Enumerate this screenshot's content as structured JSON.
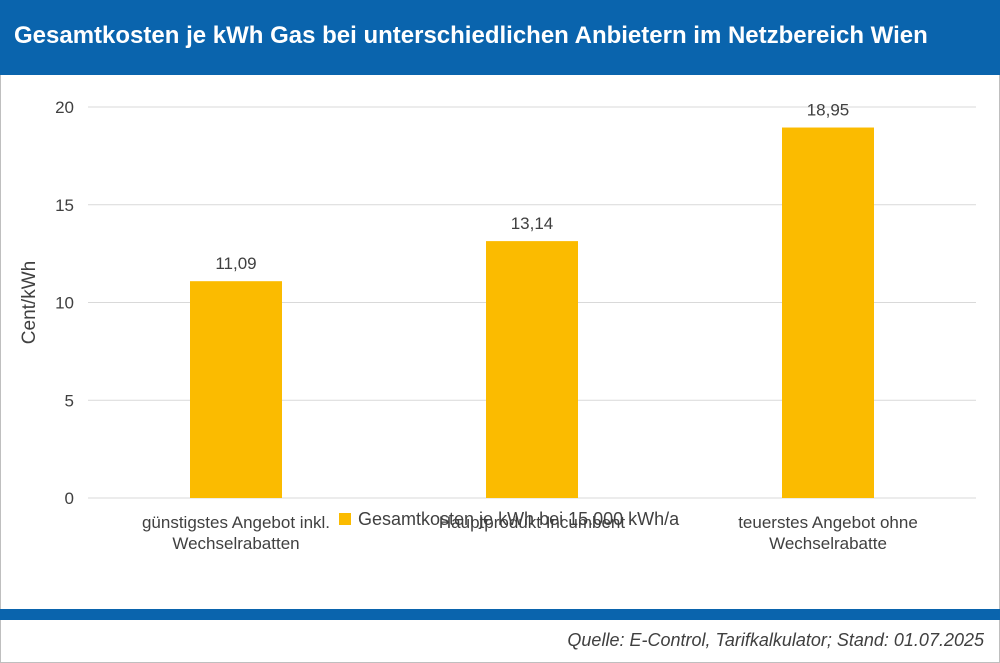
{
  "header": {
    "title": "Gesamtkosten je kWh Gas bei unterschiedlichen Anbietern im Netzbereich Wien"
  },
  "source": "Quelle: E-Control, Tarifkalkulator; Stand: 01.07.2025",
  "colors": {
    "header": "#0a64ad",
    "bar": "#fbbb00",
    "grid": "#d9d9d9",
    "text": "#404040"
  },
  "chart_data": {
    "type": "bar",
    "categories": [
      [
        "günstigstes Angebot inkl.",
        "Wechselrabatten"
      ],
      [
        "Hauptprodukt Incumbent"
      ],
      [
        "teuerstes Angebot ohne",
        "Wechselrabatte"
      ]
    ],
    "series": [
      {
        "name": "Gesamtkosten je kWh bei 15.000 kWh/a",
        "values": [
          11.09,
          13.14,
          18.95
        ],
        "labels": [
          "11,09",
          "13,14",
          "18,95"
        ]
      }
    ],
    "ylabel": "Cent/kWh",
    "xlabel": "",
    "ylim": [
      0,
      20
    ],
    "yticks": [
      0,
      5,
      10,
      15,
      20
    ],
    "grid": true,
    "legend_position": "bottom"
  }
}
